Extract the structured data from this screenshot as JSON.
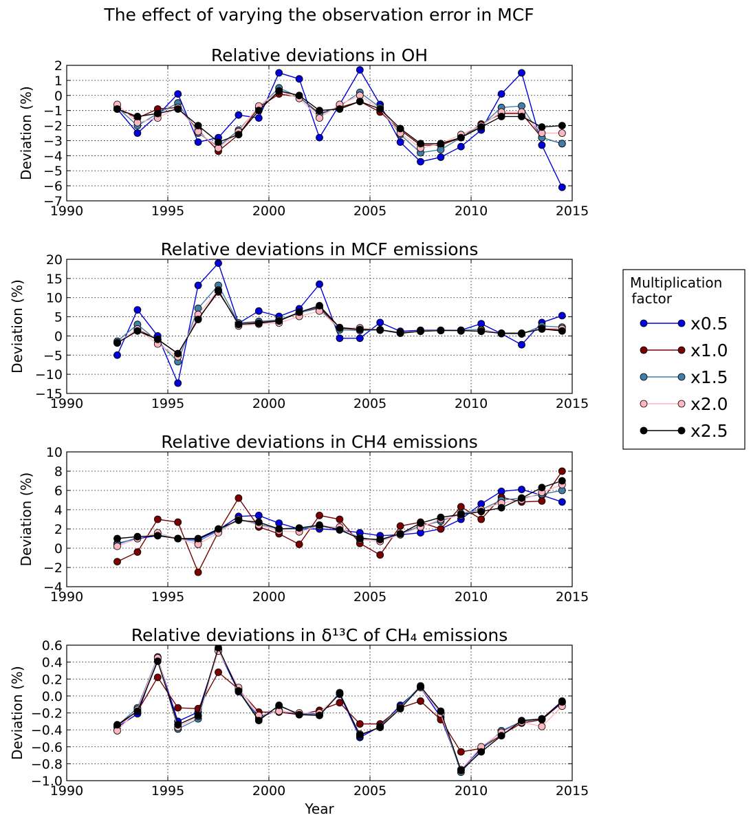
{
  "figure": {
    "suptitle": "The effect of varying the observation error in MCF"
  },
  "legend": {
    "title_line1": "Multiplication",
    "title_line2": " factor",
    "placement": "right"
  },
  "chart_data": [
    {
      "type": "line",
      "title": "Relative deviations in OH",
      "ylabel": "Deviation (%)",
      "xlabel": "",
      "xlim": [
        1990,
        2015
      ],
      "ylim": [
        -7,
        2
      ],
      "xticks": [
        1990,
        1995,
        2000,
        2005,
        2010,
        2015
      ],
      "yticks": [
        -7,
        -6,
        -5,
        -4,
        -3,
        -2,
        -1,
        0,
        1,
        2
      ],
      "ytick_labels": [
        "−7",
        "−6",
        "−5",
        "−4",
        "−3",
        "−2",
        "−1",
        "0",
        "1",
        "2"
      ],
      "grid": true,
      "x": [
        1992.5,
        1993.5,
        1994.5,
        1995.5,
        1996.5,
        1997.5,
        1998.5,
        1999.5,
        2000.5,
        2001.5,
        2002.5,
        2003.5,
        2004.5,
        2005.5,
        2006.5,
        2007.5,
        2008.5,
        2009.5,
        2010.5,
        2011.5,
        2012.5,
        2013.5,
        2014.5
      ],
      "series": [
        {
          "name": "x0.5",
          "color": "#0000dd",
          "values": [
            -0.9,
            -2.5,
            -1.3,
            0.1,
            -3.1,
            -2.8,
            -1.3,
            -1.5,
            1.5,
            1.1,
            -2.8,
            -0.6,
            1.7,
            -0.6,
            -3.1,
            -4.4,
            -4.1,
            -3.4,
            -2.3,
            0.1,
            1.5,
            -3.3,
            -6.1
          ]
        },
        {
          "name": "x1.0",
          "color": "#7a0000",
          "values": [
            -0.9,
            -1.5,
            -0.9,
            -0.8,
            -2.3,
            -3.7,
            -2.6,
            -0.8,
            0.1,
            -0.1,
            -1.2,
            -0.8,
            -0.4,
            -1.1,
            -2.3,
            -3.3,
            -3.3,
            -2.8,
            -1.9,
            -1.2,
            -1.2,
            -2.8,
            -3.2
          ]
        },
        {
          "name": "x1.5",
          "color": "#3f7fa8",
          "values": [
            -0.8,
            -2.0,
            -1.2,
            -0.5,
            -2.5,
            -3.4,
            -2.3,
            -0.8,
            0.5,
            -0.1,
            -1.3,
            -0.7,
            0.2,
            -0.8,
            -2.6,
            -3.8,
            -3.6,
            -2.8,
            -2.0,
            -0.8,
            -0.7,
            -2.8,
            -3.2
          ]
        },
        {
          "name": "x2.0",
          "color": "#ffb6c1",
          "values": [
            -0.6,
            -1.8,
            -1.5,
            -0.8,
            -2.4,
            -3.5,
            -2.4,
            -0.7,
            0.3,
            -0.2,
            -1.5,
            -0.6,
            0.0,
            -0.9,
            -2.5,
            -3.5,
            -3.2,
            -2.6,
            -2.0,
            -1.1,
            -1.1,
            -2.5,
            -2.5
          ]
        },
        {
          "name": "x2.5",
          "color": "#000000",
          "values": [
            -0.9,
            -1.4,
            -1.2,
            -0.9,
            -2.0,
            -3.1,
            -2.6,
            -1.0,
            0.3,
            0.0,
            -1.0,
            -0.9,
            -0.4,
            -0.9,
            -2.2,
            -3.2,
            -3.2,
            -2.8,
            -2.1,
            -1.4,
            -1.4,
            -2.1,
            -2.0
          ]
        }
      ]
    },
    {
      "type": "line",
      "title": "Relative deviations in MCF emissions",
      "ylabel": "Deviation (%)",
      "xlabel": "",
      "xlim": [
        1990,
        2015
      ],
      "ylim": [
        -15,
        20
      ],
      "xticks": [
        1990,
        1995,
        2000,
        2005,
        2010,
        2015
      ],
      "yticks": [
        -15,
        -10,
        -5,
        0,
        5,
        10,
        15,
        20
      ],
      "ytick_labels": [
        "−15",
        "−10",
        "−5",
        "0",
        "5",
        "10",
        "15",
        "20"
      ],
      "grid": true,
      "x": [
        1992.5,
        1993.5,
        1994.5,
        1995.5,
        1996.5,
        1997.5,
        1998.5,
        1999.5,
        2000.5,
        2001.5,
        2002.5,
        2003.5,
        2004.5,
        2005.5,
        2006.5,
        2007.5,
        2008.5,
        2009.5,
        2010.5,
        2011.5,
        2012.5,
        2013.5,
        2014.5
      ],
      "series": [
        {
          "name": "x0.5",
          "color": "#0000dd",
          "values": [
            -5.0,
            6.8,
            0.0,
            -12.3,
            13.2,
            19.0,
            3.3,
            6.5,
            5.1,
            7.1,
            13.5,
            -0.6,
            -0.6,
            3.5,
            1.2,
            1.5,
            1.5,
            1.5,
            3.2,
            0.6,
            -2.3,
            3.5,
            5.3
          ]
        },
        {
          "name": "x1.0",
          "color": "#7a0000",
          "values": [
            -1.8,
            1.7,
            -0.9,
            -4.6,
            4.5,
            11.5,
            3.3,
            3.6,
            4.0,
            6.0,
            7.5,
            2.0,
            1.7,
            1.6,
            0.9,
            1.3,
            1.4,
            1.4,
            1.3,
            0.7,
            0.7,
            2.0,
            1.5
          ]
        },
        {
          "name": "x1.5",
          "color": "#3f7fa8",
          "values": [
            -1.4,
            3.0,
            -1.4,
            -6.7,
            7.2,
            13.2,
            3.4,
            3.8,
            4.2,
            6.1,
            7.2,
            1.6,
            1.4,
            1.6,
            0.9,
            1.3,
            1.4,
            1.5,
            1.7,
            0.6,
            0.5,
            2.6,
            2.3
          ]
        },
        {
          "name": "x2.0",
          "color": "#ffb6c1",
          "values": [
            -1.8,
            1.8,
            -2.1,
            -5.4,
            5.6,
            12.0,
            2.6,
            3.1,
            3.4,
            5.1,
            6.5,
            2.1,
            2.1,
            1.5,
            0.8,
            1.3,
            1.4,
            1.3,
            1.5,
            0.7,
            0.6,
            2.0,
            1.9
          ]
        },
        {
          "name": "x2.5",
          "color": "#000000",
          "values": [
            -1.8,
            1.3,
            -0.9,
            -4.6,
            4.3,
            11.8,
            3.0,
            3.3,
            3.9,
            6.2,
            7.9,
            2.2,
            1.7,
            1.6,
            0.7,
            1.2,
            1.4,
            1.4,
            1.2,
            0.7,
            0.7,
            1.8,
            1.3
          ]
        }
      ]
    },
    {
      "type": "line",
      "title": "Relative deviations in CH4 emissions",
      "ylabel": "Deviation (%)",
      "xlabel": "",
      "xlim": [
        1990,
        2015
      ],
      "ylim": [
        -4,
        10
      ],
      "xticks": [
        1990,
        1995,
        2000,
        2005,
        2010,
        2015
      ],
      "yticks": [
        -4,
        -2,
        0,
        2,
        4,
        6,
        8,
        10
      ],
      "ytick_labels": [
        "−4",
        "−2",
        "0",
        "2",
        "4",
        "6",
        "8",
        "10"
      ],
      "grid": true,
      "x": [
        1992.5,
        1993.5,
        1994.5,
        1995.5,
        1996.5,
        1997.5,
        1998.5,
        1999.5,
        2000.5,
        2001.5,
        2002.5,
        2003.5,
        2004.5,
        2005.5,
        2006.5,
        2007.5,
        2008.5,
        2009.5,
        2010.5,
        2011.5,
        2012.5,
        2013.5,
        2014.5
      ],
      "series": [
        {
          "name": "x0.5",
          "color": "#0000dd",
          "values": [
            0.5,
            1.0,
            1.3,
            1.0,
            0.9,
            1.9,
            3.3,
            3.4,
            2.6,
            2.0,
            2.0,
            1.9,
            1.6,
            1.3,
            1.4,
            1.6,
            2.0,
            3.0,
            4.6,
            5.9,
            6.1,
            5.5,
            4.8
          ]
        },
        {
          "name": "x1.0",
          "color": "#7a0000",
          "values": [
            -1.4,
            -0.4,
            3.0,
            2.7,
            -2.5,
            1.7,
            5.2,
            2.2,
            1.5,
            0.4,
            3.4,
            3.0,
            0.5,
            -0.7,
            2.3,
            2.7,
            2.0,
            4.3,
            3.0,
            5.3,
            4.8,
            4.9,
            8.0
          ]
        },
        {
          "name": "x1.5",
          "color": "#3f7fa8",
          "values": [
            0.4,
            1.1,
            1.4,
            1.0,
            0.7,
            1.8,
            3.0,
            2.5,
            2.0,
            2.0,
            2.3,
            2.0,
            1.1,
            0.8,
            1.5,
            2.3,
            2.8,
            3.6,
            4.0,
            5.0,
            5.2,
            5.6,
            6.0
          ]
        },
        {
          "name": "x2.0",
          "color": "#ffb6c1",
          "values": [
            0.2,
            1.0,
            1.6,
            1.0,
            0.4,
            1.6,
            3.0,
            2.4,
            1.8,
            1.7,
            2.3,
            2.2,
            0.9,
            0.7,
            1.4,
            2.2,
            3.0,
            3.4,
            4.0,
            4.7,
            5.0,
            5.8,
            6.6
          ]
        },
        {
          "name": "x2.5",
          "color": "#000000",
          "values": [
            1.0,
            1.2,
            1.3,
            1.0,
            1.0,
            2.0,
            2.9,
            2.7,
            2.0,
            2.1,
            2.4,
            1.9,
            1.0,
            0.9,
            1.5,
            2.6,
            3.2,
            3.5,
            3.8,
            4.2,
            5.2,
            6.3,
            7.0
          ]
        }
      ]
    },
    {
      "type": "line",
      "title": "Relative deviations in δ¹³C of CH₄ emissions",
      "ylabel": "Deviation (%)",
      "xlabel": "Year",
      "xlim": [
        1990,
        2015
      ],
      "ylim": [
        -1.0,
        0.6
      ],
      "xticks": [
        1990,
        1995,
        2000,
        2005,
        2010,
        2015
      ],
      "yticks": [
        -1.0,
        -0.8,
        -0.6,
        -0.4,
        -0.2,
        0.0,
        0.2,
        0.4,
        0.6
      ],
      "ytick_labels": [
        "−1.0",
        "−0.8",
        "−0.6",
        "−0.4",
        "−0.2",
        "0.0",
        "0.2",
        "0.4",
        "0.6"
      ],
      "grid": true,
      "x": [
        1992.5,
        1993.5,
        1994.5,
        1995.5,
        1996.5,
        1997.5,
        1998.5,
        1999.5,
        2000.5,
        2001.5,
        2002.5,
        2003.5,
        2004.5,
        2005.5,
        2006.5,
        2007.5,
        2008.5,
        2009.5,
        2010.5,
        2011.5,
        2012.5,
        2013.5,
        2014.5
      ],
      "series": [
        {
          "name": "x0.5",
          "color": "#0000dd",
          "values": [
            -0.37,
            -0.21,
            0.44,
            -0.3,
            -0.19,
            0.54,
            0.05,
            -0.25,
            -0.17,
            -0.22,
            -0.2,
            0.02,
            -0.49,
            -0.36,
            -0.11,
            0.1,
            -0.25,
            -0.87,
            -0.62,
            -0.42,
            -0.3,
            -0.27,
            -0.06
          ]
        },
        {
          "name": "x1.0",
          "color": "#7a0000",
          "values": [
            -0.35,
            -0.18,
            0.22,
            -0.14,
            -0.15,
            0.28,
            0.08,
            -0.19,
            -0.19,
            -0.22,
            -0.17,
            -0.08,
            -0.33,
            -0.33,
            -0.14,
            -0.06,
            -0.28,
            -0.66,
            -0.62,
            -0.46,
            -0.32,
            -0.28,
            -0.08
          ]
        },
        {
          "name": "x1.5",
          "color": "#3f7fa8",
          "values": [
            -0.35,
            -0.14,
            0.46,
            -0.39,
            -0.27,
            0.55,
            0.07,
            -0.27,
            -0.12,
            -0.21,
            -0.22,
            0.04,
            -0.47,
            -0.36,
            -0.13,
            0.12,
            -0.21,
            -0.9,
            -0.64,
            -0.41,
            -0.3,
            -0.27,
            -0.07
          ]
        },
        {
          "name": "x2.0",
          "color": "#ffb6c1",
          "values": [
            -0.41,
            -0.16,
            0.45,
            -0.37,
            -0.24,
            0.53,
            0.1,
            -0.23,
            -0.18,
            -0.2,
            -0.2,
            0.03,
            -0.45,
            -0.37,
            -0.14,
            0.1,
            -0.21,
            -0.87,
            -0.6,
            -0.43,
            -0.31,
            -0.36,
            -0.12
          ]
        },
        {
          "name": "x2.5",
          "color": "#000000",
          "values": [
            -0.34,
            -0.18,
            0.41,
            -0.34,
            -0.23,
            0.57,
            0.06,
            -0.29,
            -0.11,
            -0.22,
            -0.23,
            0.03,
            -0.46,
            -0.37,
            -0.15,
            0.11,
            -0.18,
            -0.88,
            -0.66,
            -0.47,
            -0.29,
            -0.27,
            -0.07
          ]
        }
      ]
    }
  ]
}
